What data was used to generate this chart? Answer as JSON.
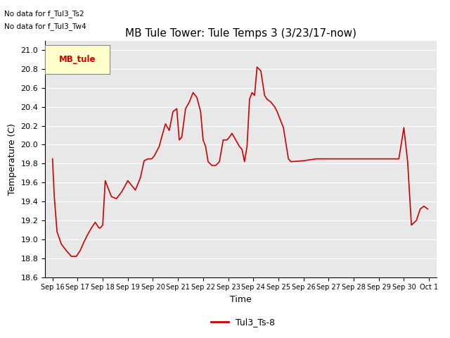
{
  "title": "MB Tule Tower: Tule Temps 3 (3/23/17-now)",
  "xlabel": "Time",
  "ylabel": "Temperature (C)",
  "ylim": [
    18.6,
    21.1
  ],
  "no_data_text_1": "No data for f_Tul3_Ts2",
  "no_data_text_2": "No data for f_Tul3_Tw4",
  "legend_box_label": "MB_tule",
  "legend_box_color": "#ffffcc",
  "legend_box_border": "#aaaaaa",
  "bottom_legend_label": "Tul3_Ts-8",
  "line_color": "#cc0000",
  "background_color": "#e8e8e8",
  "grid_color": "#ffffff",
  "xtick_labels": [
    "Sep 16",
    "Sep 17",
    "Sep 18",
    "Sep 19",
    "Sep 20",
    "Sep 21",
    "Sep 22",
    "Sep 23",
    "Sep 24",
    "Sep 25",
    "Sep 26",
    "Sep 27",
    "Sep 28",
    "Sep 29",
    "Sep 30",
    "Oct 1"
  ],
  "title_fontsize": 11,
  "axis_fontsize": 9,
  "tick_fontsize": 8,
  "key_x": [
    0.0,
    0.07,
    0.18,
    0.35,
    0.55,
    0.75,
    0.95,
    1.1,
    1.25,
    1.4,
    1.55,
    1.7,
    1.85,
    1.9,
    2.0,
    2.1,
    2.2,
    2.35,
    2.55,
    2.75,
    2.9,
    3.0,
    3.15,
    3.3,
    3.5,
    3.65,
    3.8,
    3.95,
    4.05,
    4.15,
    4.25,
    4.35,
    4.5,
    4.65,
    4.8,
    4.95,
    5.05,
    5.15,
    5.3,
    5.45,
    5.6,
    5.75,
    5.9,
    6.0,
    6.1,
    6.2,
    6.35,
    6.5,
    6.65,
    6.8,
    6.95,
    7.05,
    7.15,
    7.3,
    7.45,
    7.55,
    7.65,
    7.75,
    7.85,
    7.95,
    8.05,
    8.15,
    8.3,
    8.45,
    8.55,
    8.7,
    8.85,
    8.95,
    9.05,
    9.2,
    9.4,
    9.5,
    10.0,
    10.5,
    11.0,
    11.5,
    12.0,
    12.5,
    13.0,
    13.5,
    13.8,
    14.0,
    14.15,
    14.3,
    14.5,
    14.65,
    14.8,
    14.95
  ],
  "key_y": [
    19.85,
    19.45,
    19.08,
    18.95,
    18.88,
    18.82,
    18.82,
    18.88,
    18.97,
    19.05,
    19.12,
    19.18,
    19.12,
    19.12,
    19.15,
    19.62,
    19.55,
    19.45,
    19.43,
    19.5,
    19.57,
    19.62,
    19.57,
    19.52,
    19.65,
    19.83,
    19.85,
    19.85,
    19.88,
    19.93,
    19.98,
    20.08,
    20.22,
    20.15,
    20.35,
    20.38,
    20.05,
    20.08,
    20.38,
    20.45,
    20.55,
    20.5,
    20.35,
    20.05,
    19.98,
    19.82,
    19.78,
    19.78,
    19.82,
    20.05,
    20.05,
    20.08,
    20.12,
    20.05,
    19.98,
    19.95,
    19.82,
    19.98,
    20.48,
    20.55,
    20.52,
    20.82,
    20.78,
    20.52,
    20.48,
    20.45,
    20.4,
    20.35,
    20.28,
    20.18,
    19.85,
    19.82,
    19.83,
    19.85,
    19.85,
    19.85,
    19.85,
    19.85,
    19.85,
    19.85,
    19.85,
    20.18,
    19.82,
    19.15,
    19.2,
    19.32,
    19.35,
    19.32
  ]
}
